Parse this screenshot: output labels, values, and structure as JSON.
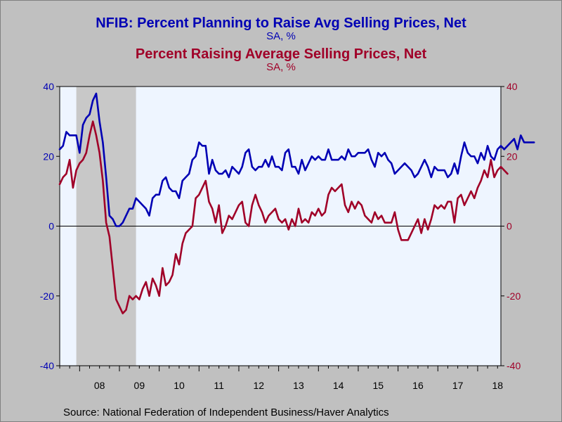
{
  "titles": {
    "series1_title": "NFIB: Percent Planning to Raise Avg Selling Prices, Net",
    "series1_subtitle": "SA, %",
    "series2_title": "Percent Raising Average Selling Prices, Net",
    "series2_subtitle": "SA, %"
  },
  "source": "Source:  National Federation of Independent Business/Haver Analytics",
  "colors": {
    "series1": "#0000b4",
    "series2": "#a00028",
    "plot_bg": "#eef5ff",
    "recession": "#c8c8c8",
    "frame_bg": "#c0c0c0"
  },
  "chart_data": {
    "type": "line",
    "x_start": "2007-07",
    "frequency": "monthly",
    "xlim": [
      "2007-07",
      "2018-08"
    ],
    "x_tick_labels": [
      "08",
      "09",
      "10",
      "11",
      "12",
      "13",
      "14",
      "15",
      "16",
      "17",
      "18"
    ],
    "ylim": [
      -40,
      40
    ],
    "y_ticks": [
      -40,
      -20,
      0,
      20,
      40
    ],
    "y_tick_labels": [
      "-40",
      "-20",
      "0",
      "20",
      "40"
    ],
    "y2_ticks": [
      -40,
      -20,
      0,
      20,
      40
    ],
    "y2_tick_labels": [
      "-40",
      "-20",
      "0",
      "20",
      "40"
    ],
    "shaded_periods": [
      {
        "start": "2007-12",
        "end": "2009-06"
      }
    ],
    "zero_line": true,
    "grid": false,
    "series": [
      {
        "axis": "left",
        "color": "#0000b4",
        "values": [
          22,
          23,
          27,
          26,
          26,
          26,
          21,
          29,
          31,
          32,
          36,
          38,
          30,
          24,
          14,
          3,
          2,
          0,
          0,
          1,
          3,
          5,
          5,
          8,
          7,
          6,
          5,
          3,
          8,
          9,
          9,
          13,
          14,
          11,
          10,
          10,
          8,
          13,
          14,
          15,
          19,
          20,
          24,
          23,
          23,
          15,
          19,
          16,
          15,
          15,
          16,
          14,
          17,
          16,
          15,
          17,
          21,
          22,
          17,
          16,
          17,
          17,
          19,
          17,
          20,
          17,
          17,
          16,
          21,
          22,
          17,
          17,
          15,
          19,
          16,
          18,
          20,
          19,
          20,
          19,
          19,
          22,
          19,
          19,
          19,
          20,
          19,
          22,
          20,
          20,
          21,
          21,
          21,
          22,
          19,
          17,
          21,
          20,
          21,
          19,
          18,
          15,
          16,
          17,
          18,
          17,
          16,
          14,
          15,
          17,
          19,
          17,
          14,
          17,
          16,
          16,
          16,
          14,
          15,
          18,
          15,
          20,
          24,
          21,
          20,
          20,
          18,
          21,
          19,
          23,
          20,
          19,
          22,
          23,
          22,
          23,
          24,
          25,
          22,
          26,
          24,
          24,
          24,
          24
        ]
      },
      {
        "axis": "right",
        "color": "#a00028",
        "values": [
          12,
          14,
          15,
          19,
          11,
          16,
          18,
          19,
          21,
          26,
          30,
          26,
          21,
          13,
          1,
          -3,
          -12,
          -21,
          -23,
          -25,
          -24,
          -20,
          -21,
          -20,
          -21,
          -18,
          -16,
          -20,
          -15,
          -17,
          -20,
          -12,
          -17,
          -16,
          -14,
          -8,
          -11,
          -5,
          -2,
          -1,
          0,
          8,
          9,
          11,
          13,
          7,
          5,
          1,
          6,
          -2,
          0,
          3,
          2,
          4,
          6,
          7,
          1,
          0,
          6,
          9,
          6,
          4,
          1,
          3,
          4,
          5,
          2,
          1,
          2,
          -1,
          2,
          0,
          5,
          1,
          2,
          1,
          4,
          3,
          5,
          3,
          4,
          9,
          11,
          10,
          11,
          12,
          6,
          4,
          7,
          5,
          7,
          6,
          3,
          2,
          1,
          4,
          2,
          3,
          1,
          1,
          1,
          4,
          -1,
          -4,
          -4,
          -4,
          -2,
          0,
          2,
          -2,
          2,
          -1,
          2,
          6,
          5,
          6,
          5,
          7,
          7,
          1,
          8,
          9,
          6,
          8,
          10,
          8,
          11,
          13,
          16,
          14,
          19,
          14,
          16,
          17,
          16,
          15
        ]
      }
    ]
  }
}
